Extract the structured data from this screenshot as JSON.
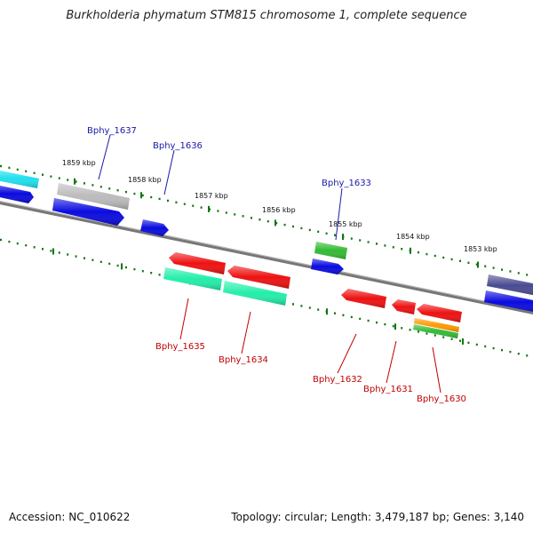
{
  "title": "Burkholderia phymatum STM815 chromosome 1, complete sequence",
  "footer": {
    "accession": "Accession: NC_010622",
    "summary": "Topology: circular; Length: 3,479,187 bp; Genes: 3,140"
  },
  "ticks": [
    {
      "label": "1859 kbp"
    },
    {
      "label": "1858 kbp"
    },
    {
      "label": "1857 kbp"
    },
    {
      "label": "1856 kbp"
    },
    {
      "label": "1855 kbp"
    },
    {
      "label": "1854 kbp"
    },
    {
      "label": "1853 kbp"
    }
  ],
  "gene_labels": [
    {
      "text": "Bphy_1637",
      "color": "#1a1aa6"
    },
    {
      "text": "Bphy_1636",
      "color": "#1a1aa6"
    },
    {
      "text": "Bphy_1633",
      "color": "#1a1aa6"
    },
    {
      "text": "Bphy_1635",
      "color": "#c00000"
    },
    {
      "text": "Bphy_1634",
      "color": "#c00000"
    },
    {
      "text": "Bphy_1632",
      "color": "#c00000"
    },
    {
      "text": "Bphy_1631",
      "color": "#c00000"
    },
    {
      "text": "Bphy_1630",
      "color": "#c00000"
    }
  ],
  "colors": {
    "blue": "#0a0ae0",
    "red": "#ee1111",
    "cyan": "#20e0ee",
    "gray": "#bbbbbb",
    "green": "#33bb33",
    "teal": "#22eeaa",
    "orange": "#ff9900",
    "purple": "#4a4a90",
    "tick": "#117711",
    "backbone": "#777777"
  }
}
